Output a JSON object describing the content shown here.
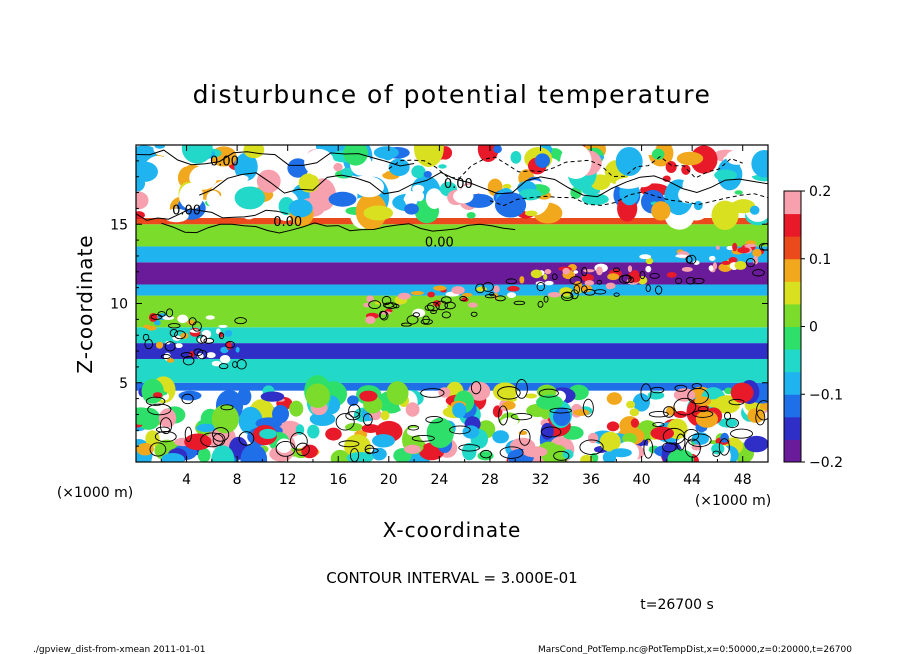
{
  "chart_data": {
    "type": "heatmap",
    "title": "disturbunce of potential temperature",
    "xlabel": "X-coordinate",
    "ylabel": "Z-coordinate",
    "x_unit": "(×1000 m)",
    "z_unit": "(×1000 m)",
    "xlim": [
      0,
      50
    ],
    "zlim": [
      0,
      20
    ],
    "x_ticks": [
      4,
      8,
      12,
      16,
      20,
      24,
      28,
      32,
      36,
      40,
      44,
      48
    ],
    "z_ticks": [
      5,
      10,
      15
    ],
    "colorbar": {
      "range": [
        -0.2,
        0.2
      ],
      "ticks": [
        "0.2",
        "0.1",
        "0",
        "−0.1",
        "−0.2"
      ],
      "tick_values": [
        0.2,
        0.1,
        0,
        -0.1,
        -0.2
      ],
      "colors": [
        "#6a1b9a",
        "#2f2fc8",
        "#1f6fe8",
        "#1fb4f0",
        "#22d8c8",
        "#2ee06a",
        "#7cdc2c",
        "#d8e020",
        "#f2a81c",
        "#ea4a1c",
        "#e81a2a",
        "#f7a0ae"
      ]
    },
    "contour_labels": [
      {
        "text": "0.00",
        "x": 7.0,
        "z": 18.7
      },
      {
        "text": "0.00",
        "x": 25.5,
        "z": 17.3
      },
      {
        "text": "0.00",
        "x": 4.0,
        "z": 15.6
      },
      {
        "text": "0.00",
        "x": 12.0,
        "z": 14.9
      },
      {
        "text": "0.00",
        "x": 24.0,
        "z": 13.6
      }
    ],
    "bands": [
      {
        "z0": 0,
        "z1": 4.5,
        "value": "mixed"
      },
      {
        "z0": 4.5,
        "z1": 5.0,
        "value": -0.12
      },
      {
        "z0": 5.0,
        "z1": 6.5,
        "value": -0.05
      },
      {
        "z0": 6.5,
        "z1": 7.5,
        "value": -0.15
      },
      {
        "z0": 7.5,
        "z1": 8.5,
        "value": -0.06
      },
      {
        "z0": 8.5,
        "z1": 10.5,
        "value": 0.0
      },
      {
        "z0": 10.5,
        "z1": 11.2,
        "value": -0.08
      },
      {
        "z0": 11.2,
        "z1": 12.6,
        "value": -0.18
      },
      {
        "z0": 12.6,
        "z1": 13.6,
        "value": -0.08
      },
      {
        "z0": 13.6,
        "z1": 15.0,
        "value": 0.01
      },
      {
        "z0": 15.0,
        "z1": 15.4,
        "value": 0.12
      },
      {
        "z0": 15.4,
        "z1": 20.0,
        "value": "mixed"
      }
    ]
  },
  "annotations": {
    "contour_interval": "CONTOUR INTERVAL = 3.000E-01",
    "time": "t=26700 s",
    "footer_left": "./gpview_dist-from-xmean  2011-01-01",
    "footer_right": "MarsCond_PotTemp.nc@PotTempDist,x=0:50000,z=0:20000,t=26700"
  }
}
